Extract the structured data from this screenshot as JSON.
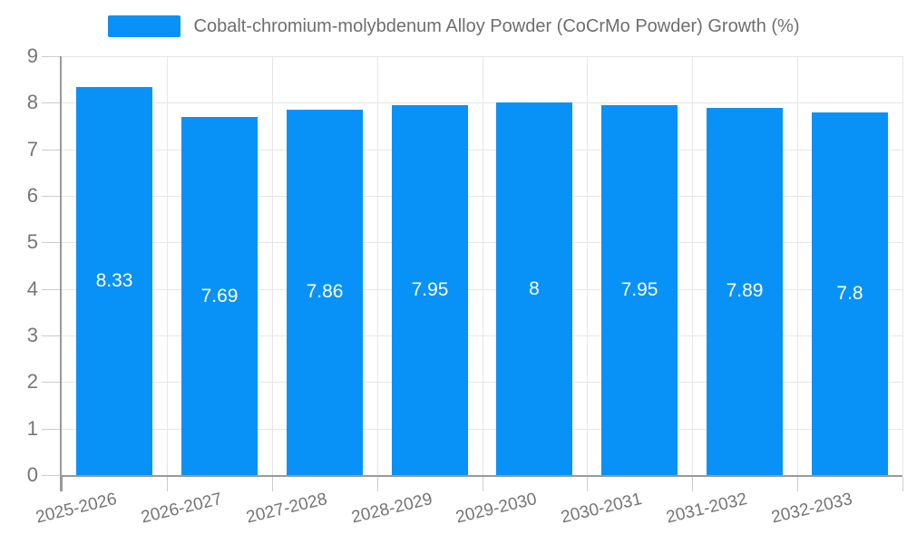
{
  "chart_data": {
    "type": "bar",
    "title": "Cobalt-chromium-molybdenum Alloy Powder (CoCrMo Powder) Growth (%)",
    "legend": {
      "label": "Cobalt-chromium-molybdenum Alloy Powder (CoCrMo Powder) Growth (%)",
      "position": "top-center"
    },
    "categories": [
      "2025-2026",
      "2026-2027",
      "2027-2028",
      "2028-2029",
      "2029-2030",
      "2030-2031",
      "2031-2032",
      "2032-2033"
    ],
    "series": [
      {
        "name": "Cobalt-chromium-molybdenum Alloy Powder (CoCrMo Powder) Growth (%)",
        "values": [
          8.33,
          7.69,
          7.86,
          7.95,
          8,
          7.95,
          7.89,
          7.8
        ],
        "value_labels": [
          "8.33",
          "7.69",
          "7.86",
          "7.95",
          "8",
          "7.95",
          "7.89",
          "7.8"
        ]
      }
    ],
    "xlabel": "",
    "ylabel": "",
    "ylim": [
      0,
      9
    ],
    "y_ticks": [
      0,
      1,
      2,
      3,
      4,
      5,
      6,
      7,
      8,
      9
    ],
    "grid": true,
    "x_label_rotation_deg": -13.5,
    "value_label_position": "inside-middle",
    "colors": {
      "bar": "#0892f7",
      "bar_value_text": "#ffffff",
      "axis_line": "#999999",
      "grid_line": "#e6e6e6",
      "tick_mark": "#cccccc",
      "tick_label": "#757575",
      "legend_text": "#6e6e6e",
      "background": "#ffffff"
    }
  }
}
